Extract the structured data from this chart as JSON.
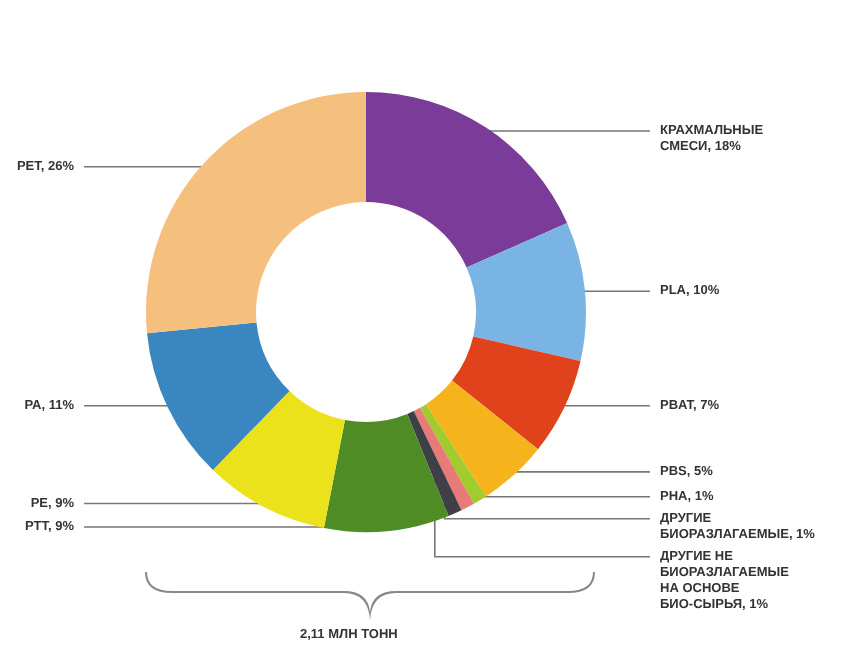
{
  "chart_data": {
    "type": "donut",
    "categories": [
      "КРАХМАЛЬНЫЕ\nСМЕСИ",
      "PLA",
      "PBAT",
      "PBS",
      "PHA",
      "ДРУГИЕ\nБИОРАЗЛАГАЕМЫЕ",
      "ДРУГИЕ НЕ\nБИОРАЗЛАГАЕМЫЕ\nНА ОСНОВЕ\nБИО-СЫРЬЯ",
      "PTT",
      "PE",
      "PA",
      "PET"
    ],
    "values": [
      18,
      10,
      7,
      5,
      1,
      1,
      1,
      9,
      9,
      11,
      26
    ],
    "colors": [
      "#7b3b98",
      "#7ab4e4",
      "#e0421c",
      "#f6b41c",
      "#a2cc2e",
      "#e87a78",
      "#3f3f48",
      "#4f8c26",
      "#ece21c",
      "#3a86c0",
      "#f5c07e"
    ],
    "value_labels": [
      "18%",
      "10%",
      "7%",
      "5%",
      "1%",
      "1%",
      "1%",
      "9%",
      "9%",
      "11%",
      "26%"
    ],
    "annotations": [
      "2,11 МЛН ТОНН"
    ]
  }
}
